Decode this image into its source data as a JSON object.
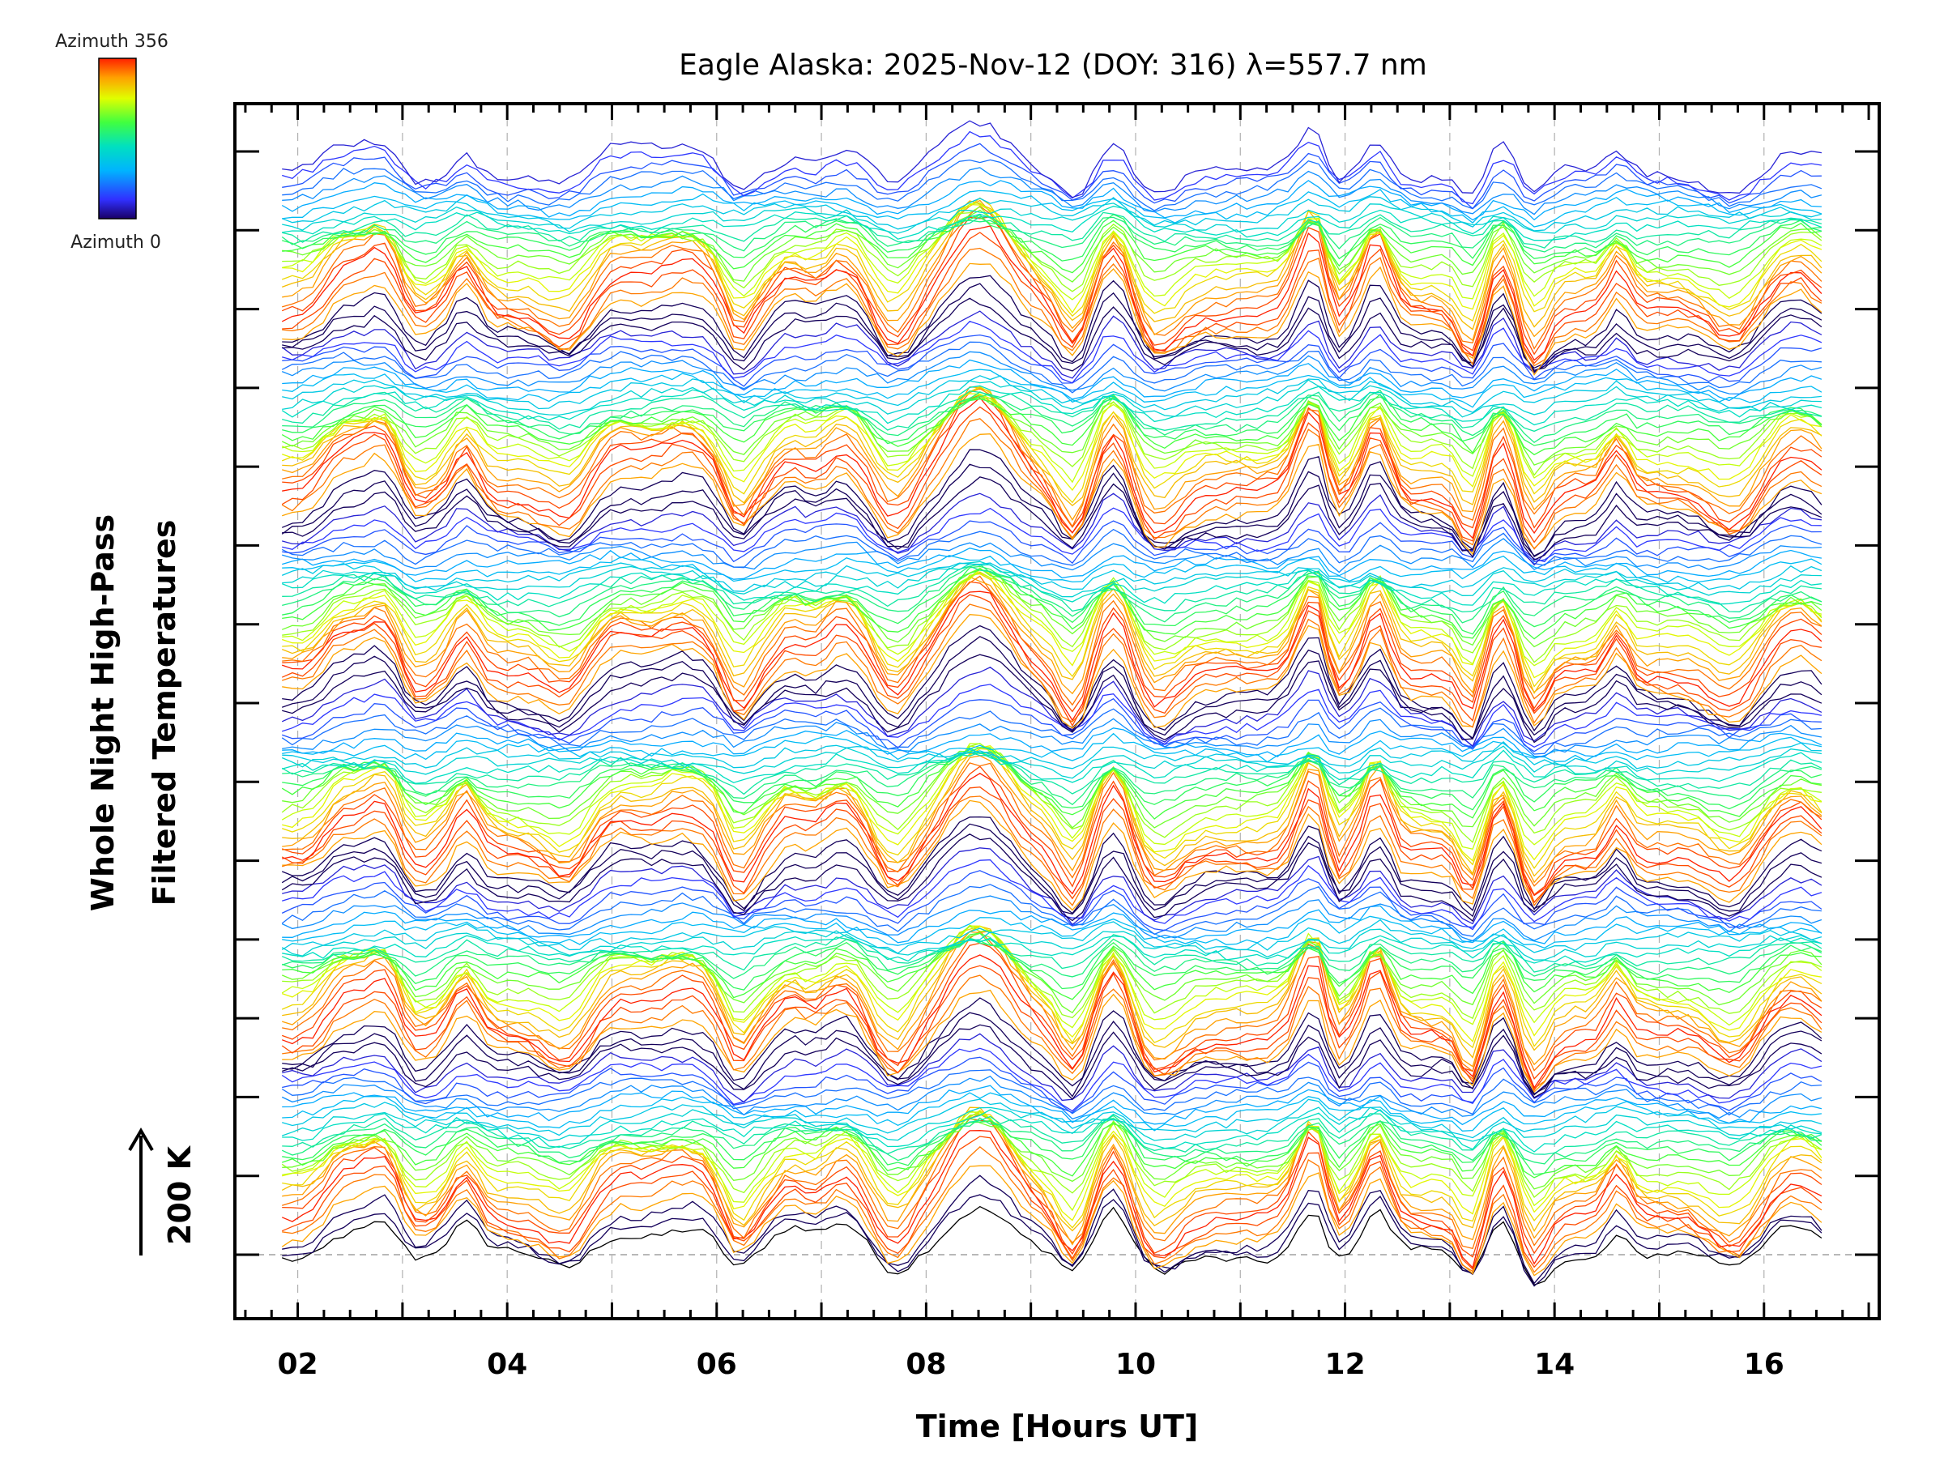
{
  "chart_data": {
    "type": "line",
    "title": "Eagle Alaska: 2025-Nov-12 (DOY: 316) λ=557.7 nm",
    "xlabel": "Time [Hours UT]",
    "ylabel_line1": "Whole Night High-Pass",
    "ylabel_line2": "Filtered Temperatures",
    "xlim": [
      1.4,
      17.1
    ],
    "x_ticks": [
      2,
      4,
      6,
      8,
      10,
      12,
      14,
      16
    ],
    "x_tick_labels": [
      "02",
      "04",
      "06",
      "08",
      "10",
      "12",
      "14",
      "16"
    ],
    "data_start_hour": 1.85,
    "data_end_hour": 16.55,
    "num_traces": 180,
    "num_y_ticks": 15,
    "scale_bar_label": "200 K",
    "legend": {
      "top_label": "Azimuth 356",
      "bottom_label": "Azimuth 0",
      "min_azimuth": 0,
      "max_azimuth": 356
    },
    "colors": {
      "background": "#ffffff",
      "axes": "#000000",
      "grid": "#b0b0b0"
    }
  }
}
